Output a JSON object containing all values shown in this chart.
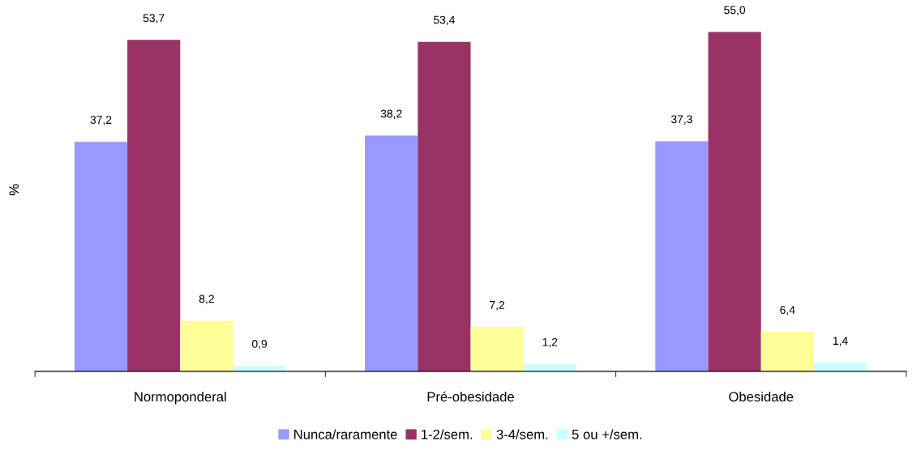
{
  "chart_data": {
    "type": "bar",
    "ylabel": "%",
    "categories": [
      "Normoponderal",
      "Pré-obesidade",
      "Obesidade"
    ],
    "series": [
      {
        "name": "Nunca/raramente",
        "color": "#9999ff",
        "values": [
          37.2,
          38.2,
          37.3
        ],
        "value_labels": [
          "37,2",
          "38,2",
          "37,3"
        ]
      },
      {
        "name": "1-2/sem.",
        "color": "#993366",
        "values": [
          53.7,
          53.4,
          55.0
        ],
        "value_labels": [
          "53,7",
          "53,4",
          "55,0"
        ]
      },
      {
        "name": "3-4/sem.",
        "color": "#ffff99",
        "values": [
          8.2,
          7.2,
          6.4
        ],
        "value_labels": [
          "8,2",
          "7,2",
          "6,4"
        ]
      },
      {
        "name": "5 ou +/sem.",
        "color": "#ccffff",
        "values": [
          0.9,
          1.2,
          1.4
        ],
        "value_labels": [
          "0,9",
          "1,2",
          "1,4"
        ]
      }
    ],
    "legend": "bottom",
    "grid": false,
    "tick_labels": "x"
  }
}
